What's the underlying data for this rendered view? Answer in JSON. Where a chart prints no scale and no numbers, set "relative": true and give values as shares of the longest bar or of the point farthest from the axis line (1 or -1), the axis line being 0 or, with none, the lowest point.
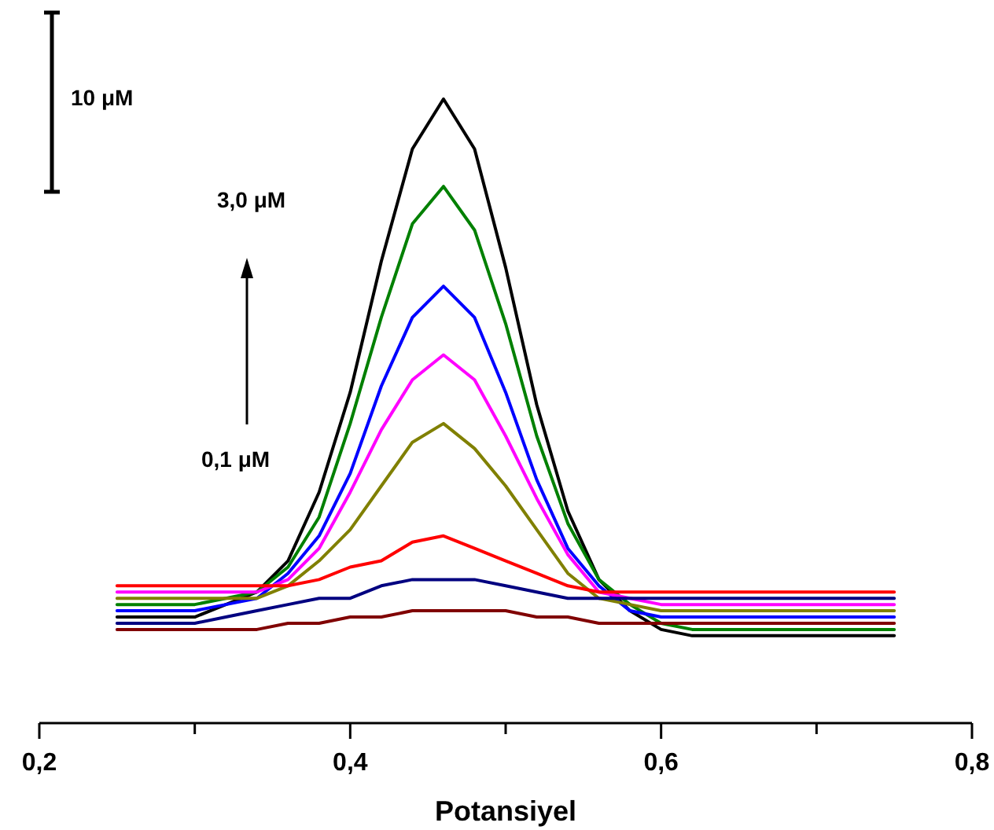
{
  "chart_data": {
    "type": "line",
    "relative": true,
    "xlabel": "Potansiyel",
    "xlim": [
      0.2,
      0.8
    ],
    "xticks": [
      {
        "value": 0.2,
        "label": "0,2"
      },
      {
        "value": 0.3,
        "label": null
      },
      {
        "value": 0.4,
        "label": "0,4"
      },
      {
        "value": 0.5,
        "label": null
      },
      {
        "value": 0.6,
        "label": "0,6"
      },
      {
        "value": 0.7,
        "label": null
      },
      {
        "value": 0.8,
        "label": "0,8"
      }
    ],
    "tick_labels": "x",
    "x": [
      0.25,
      0.3,
      0.32,
      0.34,
      0.36,
      0.38,
      0.4,
      0.42,
      0.44,
      0.46,
      0.48,
      0.5,
      0.52,
      0.54,
      0.56,
      0.58,
      0.6,
      0.62,
      0.65,
      0.7,
      0.75
    ],
    "annotations": [
      "10 μM",
      "3,0 μM",
      "0,1 μM"
    ],
    "series": [
      {
        "color": "#000000",
        "values": [
          0.17,
          0.17,
          0.19,
          0.21,
          0.26,
          0.37,
          0.53,
          0.74,
          0.92,
          1.0,
          0.92,
          0.73,
          0.51,
          0.34,
          0.23,
          0.18,
          0.15,
          0.14,
          0.14,
          0.14,
          0.14
        ]
      },
      {
        "color": "#008000",
        "values": [
          0.19,
          0.19,
          0.2,
          0.21,
          0.25,
          0.33,
          0.48,
          0.65,
          0.8,
          0.86,
          0.79,
          0.64,
          0.46,
          0.32,
          0.23,
          0.19,
          0.16,
          0.15,
          0.15,
          0.15,
          0.15
        ]
      },
      {
        "color": "#0000ff",
        "values": [
          0.18,
          0.18,
          0.19,
          0.2,
          0.24,
          0.3,
          0.4,
          0.54,
          0.65,
          0.7,
          0.65,
          0.53,
          0.39,
          0.28,
          0.22,
          0.18,
          0.17,
          0.17,
          0.17,
          0.17,
          0.17
        ]
      },
      {
        "color": "#ff00ff",
        "values": [
          0.21,
          0.21,
          0.21,
          0.21,
          0.23,
          0.28,
          0.37,
          0.47,
          0.55,
          0.59,
          0.55,
          0.46,
          0.36,
          0.27,
          0.21,
          0.2,
          0.19,
          0.19,
          0.19,
          0.19,
          0.19
        ]
      },
      {
        "color": "#808000",
        "values": [
          0.2,
          0.2,
          0.2,
          0.2,
          0.22,
          0.26,
          0.31,
          0.38,
          0.45,
          0.48,
          0.44,
          0.38,
          0.31,
          0.24,
          0.2,
          0.19,
          0.18,
          0.18,
          0.18,
          0.18,
          0.18
        ]
      },
      {
        "color": "#ff0000",
        "values": [
          0.22,
          0.22,
          0.22,
          0.22,
          0.22,
          0.23,
          0.25,
          0.26,
          0.29,
          0.3,
          0.28,
          0.26,
          0.24,
          0.22,
          0.21,
          0.21,
          0.21,
          0.21,
          0.21,
          0.21,
          0.21
        ]
      },
      {
        "color": "#000080",
        "values": [
          0.16,
          0.16,
          0.17,
          0.18,
          0.19,
          0.2,
          0.2,
          0.22,
          0.23,
          0.23,
          0.23,
          0.22,
          0.21,
          0.2,
          0.2,
          0.2,
          0.2,
          0.2,
          0.2,
          0.2,
          0.2
        ]
      },
      {
        "color": "#800000",
        "values": [
          0.15,
          0.15,
          0.15,
          0.15,
          0.16,
          0.16,
          0.17,
          0.17,
          0.18,
          0.18,
          0.18,
          0.18,
          0.17,
          0.17,
          0.16,
          0.16,
          0.16,
          0.16,
          0.16,
          0.16,
          0.16
        ]
      }
    ]
  }
}
